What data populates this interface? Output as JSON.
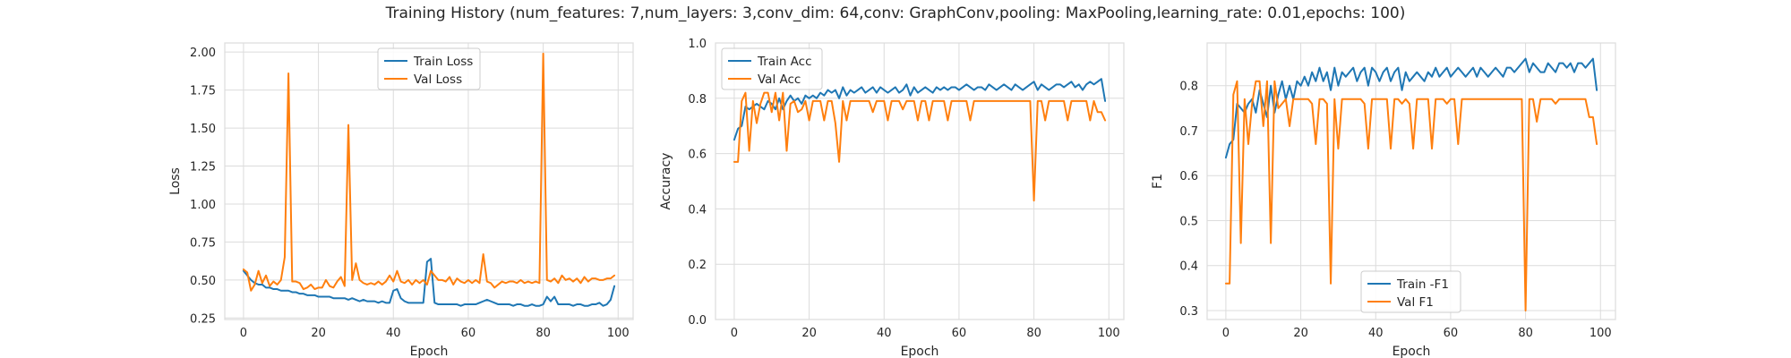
{
  "title": "Training History (num_features: 7,num_layers: 3,conv_dim: 64,conv: GraphConv,pooling: MaxPooling,learning_rate: 0.01,epochs: 100)",
  "colors": {
    "train": "#1f77b4",
    "val": "#ff7f0e",
    "grid": "#dcdcdc",
    "panel": "#ffffff"
  },
  "chart_data": [
    {
      "type": "line",
      "title": "",
      "xlabel": "Epoch",
      "ylabel": "Loss",
      "xlim": [
        -5,
        104
      ],
      "ylim": [
        0.24,
        2.06
      ],
      "xticks": [
        0,
        20,
        40,
        60,
        80,
        100
      ],
      "yticks": [
        0.25,
        0.5,
        0.75,
        1.0,
        1.25,
        1.5,
        1.75,
        2.0
      ],
      "ytick_labels": [
        "0.25",
        "0.50",
        "0.75",
        "1.00",
        "1.25",
        "1.50",
        "1.75",
        "2.00"
      ],
      "legend": "upper center",
      "series": [
        {
          "name": "Train Loss",
          "values": [
            0.56,
            0.53,
            0.5,
            0.48,
            0.47,
            0.47,
            0.45,
            0.45,
            0.44,
            0.44,
            0.43,
            0.43,
            0.43,
            0.42,
            0.42,
            0.41,
            0.41,
            0.4,
            0.4,
            0.4,
            0.39,
            0.39,
            0.39,
            0.39,
            0.38,
            0.38,
            0.38,
            0.38,
            0.37,
            0.38,
            0.37,
            0.36,
            0.37,
            0.36,
            0.36,
            0.36,
            0.35,
            0.36,
            0.35,
            0.35,
            0.43,
            0.44,
            0.38,
            0.36,
            0.35,
            0.35,
            0.35,
            0.35,
            0.35,
            0.62,
            0.64,
            0.35,
            0.34,
            0.34,
            0.34,
            0.34,
            0.34,
            0.34,
            0.33,
            0.34,
            0.34,
            0.34,
            0.34,
            0.35,
            0.36,
            0.37,
            0.36,
            0.35,
            0.34,
            0.34,
            0.34,
            0.34,
            0.33,
            0.34,
            0.34,
            0.33,
            0.33,
            0.34,
            0.33,
            0.33,
            0.34,
            0.39,
            0.36,
            0.39,
            0.34,
            0.34,
            0.34,
            0.34,
            0.33,
            0.34,
            0.34,
            0.33,
            0.33,
            0.34,
            0.34,
            0.35,
            0.33,
            0.34,
            0.37,
            0.46
          ]
        },
        {
          "name": "Val Loss",
          "values": [
            0.57,
            0.55,
            0.43,
            0.47,
            0.56,
            0.48,
            0.53,
            0.46,
            0.49,
            0.47,
            0.5,
            0.65,
            1.86,
            0.49,
            0.49,
            0.48,
            0.44,
            0.45,
            0.47,
            0.44,
            0.45,
            0.45,
            0.5,
            0.46,
            0.45,
            0.49,
            0.52,
            0.46,
            1.52,
            0.5,
            0.61,
            0.5,
            0.48,
            0.47,
            0.48,
            0.47,
            0.49,
            0.47,
            0.49,
            0.53,
            0.49,
            0.56,
            0.49,
            0.48,
            0.5,
            0.47,
            0.5,
            0.48,
            0.5,
            0.47,
            0.56,
            0.53,
            0.5,
            0.5,
            0.49,
            0.52,
            0.47,
            0.51,
            0.49,
            0.48,
            0.5,
            0.48,
            0.5,
            0.48,
            0.67,
            0.49,
            0.48,
            0.45,
            0.47,
            0.49,
            0.48,
            0.49,
            0.49,
            0.48,
            0.5,
            0.48,
            0.49,
            0.48,
            0.49,
            0.48,
            1.99,
            0.5,
            0.49,
            0.51,
            0.48,
            0.53,
            0.5,
            0.51,
            0.49,
            0.51,
            0.48,
            0.52,
            0.49,
            0.51,
            0.51,
            0.5,
            0.5,
            0.51,
            0.51,
            0.53
          ]
        }
      ]
    },
    {
      "type": "line",
      "title": "",
      "xlabel": "Epoch",
      "ylabel": "Accuracy",
      "xlim": [
        -5,
        104
      ],
      "ylim": [
        0.0,
        1.0
      ],
      "xticks": [
        0,
        20,
        40,
        60,
        80,
        100
      ],
      "yticks": [
        0.0,
        0.2,
        0.4,
        0.6,
        0.8,
        1.0
      ],
      "ytick_labels": [
        "0.0",
        "0.2",
        "0.4",
        "0.6",
        "0.8",
        "1.0"
      ],
      "legend": "upper left",
      "series": [
        {
          "name": "Train Acc",
          "values": [
            0.65,
            0.69,
            0.7,
            0.77,
            0.76,
            0.77,
            0.78,
            0.77,
            0.76,
            0.79,
            0.78,
            0.76,
            0.8,
            0.76,
            0.79,
            0.81,
            0.79,
            0.8,
            0.78,
            0.81,
            0.8,
            0.81,
            0.8,
            0.82,
            0.81,
            0.83,
            0.82,
            0.83,
            0.8,
            0.84,
            0.81,
            0.83,
            0.82,
            0.83,
            0.84,
            0.82,
            0.83,
            0.84,
            0.82,
            0.84,
            0.83,
            0.82,
            0.83,
            0.84,
            0.82,
            0.83,
            0.85,
            0.81,
            0.84,
            0.82,
            0.83,
            0.84,
            0.83,
            0.82,
            0.84,
            0.83,
            0.84,
            0.83,
            0.84,
            0.84,
            0.83,
            0.84,
            0.85,
            0.84,
            0.83,
            0.84,
            0.84,
            0.83,
            0.85,
            0.84,
            0.83,
            0.84,
            0.85,
            0.84,
            0.83,
            0.85,
            0.84,
            0.83,
            0.84,
            0.85,
            0.86,
            0.83,
            0.85,
            0.84,
            0.83,
            0.84,
            0.85,
            0.85,
            0.84,
            0.85,
            0.86,
            0.84,
            0.85,
            0.83,
            0.85,
            0.86,
            0.85,
            0.86,
            0.87,
            0.79
          ]
        },
        {
          "name": "Val Acc",
          "values": [
            0.57,
            0.57,
            0.79,
            0.82,
            0.61,
            0.79,
            0.71,
            0.78,
            0.82,
            0.82,
            0.75,
            0.82,
            0.72,
            0.82,
            0.61,
            0.78,
            0.79,
            0.75,
            0.76,
            0.79,
            0.72,
            0.79,
            0.79,
            0.79,
            0.72,
            0.79,
            0.79,
            0.71,
            0.57,
            0.79,
            0.72,
            0.79,
            0.79,
            0.79,
            0.79,
            0.79,
            0.79,
            0.75,
            0.79,
            0.79,
            0.79,
            0.72,
            0.79,
            0.79,
            0.79,
            0.76,
            0.79,
            0.79,
            0.79,
            0.72,
            0.79,
            0.79,
            0.72,
            0.79,
            0.79,
            0.79,
            0.79,
            0.72,
            0.79,
            0.79,
            0.79,
            0.79,
            0.79,
            0.72,
            0.79,
            0.79,
            0.79,
            0.79,
            0.79,
            0.79,
            0.79,
            0.79,
            0.79,
            0.79,
            0.79,
            0.79,
            0.79,
            0.79,
            0.79,
            0.79,
            0.43,
            0.79,
            0.79,
            0.72,
            0.79,
            0.79,
            0.79,
            0.79,
            0.79,
            0.72,
            0.79,
            0.79,
            0.79,
            0.79,
            0.79,
            0.72,
            0.79,
            0.75,
            0.75,
            0.72
          ]
        }
      ]
    },
    {
      "type": "line",
      "title": "",
      "xlabel": "Epoch",
      "ylabel": "F1",
      "xlim": [
        -5,
        104
      ],
      "ylim": [
        0.28,
        0.895
      ],
      "xticks": [
        0,
        20,
        40,
        60,
        80,
        100
      ],
      "yticks": [
        0.3,
        0.4,
        0.5,
        0.6,
        0.7,
        0.8
      ],
      "ytick_labels": [
        "0.3",
        "0.4",
        "0.5",
        "0.6",
        "0.7",
        "0.8"
      ],
      "legend": "lower center",
      "series": [
        {
          "name": "Train -F1",
          "values": [
            0.64,
            0.67,
            0.68,
            0.76,
            0.75,
            0.74,
            0.76,
            0.77,
            0.74,
            0.79,
            0.76,
            0.73,
            0.8,
            0.74,
            0.78,
            0.81,
            0.77,
            0.8,
            0.77,
            0.81,
            0.8,
            0.82,
            0.8,
            0.83,
            0.81,
            0.84,
            0.81,
            0.83,
            0.79,
            0.84,
            0.8,
            0.83,
            0.82,
            0.83,
            0.84,
            0.81,
            0.83,
            0.84,
            0.8,
            0.84,
            0.83,
            0.81,
            0.83,
            0.84,
            0.81,
            0.83,
            0.84,
            0.79,
            0.83,
            0.81,
            0.82,
            0.83,
            0.82,
            0.81,
            0.83,
            0.82,
            0.84,
            0.82,
            0.83,
            0.84,
            0.82,
            0.83,
            0.84,
            0.83,
            0.82,
            0.83,
            0.84,
            0.82,
            0.84,
            0.83,
            0.82,
            0.83,
            0.84,
            0.83,
            0.82,
            0.84,
            0.84,
            0.83,
            0.84,
            0.85,
            0.86,
            0.83,
            0.85,
            0.84,
            0.83,
            0.83,
            0.85,
            0.84,
            0.83,
            0.85,
            0.85,
            0.84,
            0.85,
            0.83,
            0.85,
            0.85,
            0.84,
            0.85,
            0.86,
            0.79
          ]
        },
        {
          "name": "Val F1",
          "values": [
            0.36,
            0.36,
            0.78,
            0.81,
            0.45,
            0.77,
            0.67,
            0.76,
            0.81,
            0.81,
            0.71,
            0.81,
            0.45,
            0.81,
            0.75,
            0.76,
            0.77,
            0.71,
            0.77,
            0.77,
            0.77,
            0.77,
            0.77,
            0.76,
            0.67,
            0.77,
            0.77,
            0.76,
            0.36,
            0.77,
            0.66,
            0.77,
            0.77,
            0.77,
            0.77,
            0.77,
            0.77,
            0.76,
            0.66,
            0.77,
            0.77,
            0.77,
            0.77,
            0.77,
            0.66,
            0.77,
            0.77,
            0.76,
            0.77,
            0.76,
            0.66,
            0.77,
            0.77,
            0.77,
            0.77,
            0.66,
            0.77,
            0.77,
            0.77,
            0.76,
            0.77,
            0.77,
            0.67,
            0.77,
            0.77,
            0.77,
            0.77,
            0.77,
            0.77,
            0.77,
            0.77,
            0.77,
            0.77,
            0.77,
            0.77,
            0.77,
            0.77,
            0.77,
            0.77,
            0.77,
            0.3,
            0.77,
            0.77,
            0.72,
            0.77,
            0.77,
            0.77,
            0.77,
            0.76,
            0.77,
            0.77,
            0.77,
            0.77,
            0.77,
            0.77,
            0.77,
            0.77,
            0.73,
            0.73,
            0.67
          ]
        }
      ]
    }
  ]
}
